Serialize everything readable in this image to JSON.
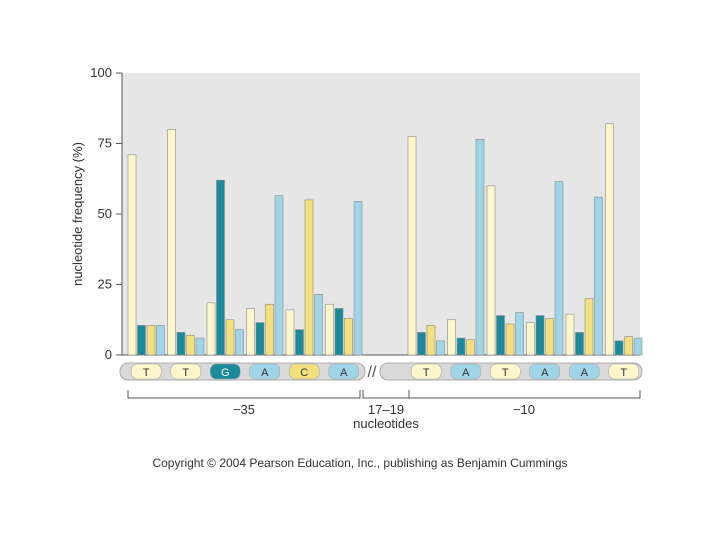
{
  "chart_data": {
    "type": "bar",
    "title": "",
    "ylabel": "nucleotide frequency (%)",
    "ylim": [
      0,
      100
    ],
    "yticks": [
      "100",
      "75",
      "50",
      "25",
      "0"
    ],
    "series_colors": [
      "#fff6cc",
      "#1a8a9c",
      "#f3e07c",
      "#9fd5e6"
    ],
    "groups": [
      {
        "base": "T",
        "region": "-35",
        "values": [
          71,
          10.5,
          10.5,
          10.5
        ]
      },
      {
        "base": "T",
        "region": "-35",
        "values": [
          80,
          8,
          7,
          6
        ]
      },
      {
        "base": "G",
        "region": "-35",
        "values": [
          18.5,
          62,
          12.5,
          9
        ]
      },
      {
        "base": "A",
        "region": "-35",
        "values": [
          16.5,
          11.5,
          18,
          56.5
        ]
      },
      {
        "base": "C",
        "region": "-35",
        "values": [
          16,
          9,
          55,
          21.5
        ]
      },
      {
        "base": "A",
        "region": "-35",
        "values": [
          18,
          16.5,
          13,
          54.5
        ]
      },
      {
        "base": "T",
        "region": "-10",
        "values": [
          77.5,
          8,
          10.5,
          5
        ]
      },
      {
        "base": "A",
        "region": "-10",
        "values": [
          12.5,
          6,
          5.5,
          76.5
        ]
      },
      {
        "base": "T",
        "region": "-10",
        "values": [
          60,
          14,
          11,
          15
        ]
      },
      {
        "base": "A",
        "region": "-10",
        "values": [
          11.5,
          14,
          13,
          61.5
        ]
      },
      {
        "base": "A",
        "region": "-10",
        "values": [
          14.5,
          8,
          20,
          56
        ]
      },
      {
        "base": "T",
        "region": "-10",
        "values": [
          82,
          5,
          6.5,
          6
        ]
      }
    ],
    "base_colors": {
      "T": "#fff6cc",
      "G": "#1a8a9c",
      "C": "#f3e07c",
      "A": "#9fd5e6"
    },
    "region_labels": {
      "left": "−35",
      "middle": "17–19",
      "middle_sub": "nucleotides",
      "right": "−10"
    },
    "break_symbol": "//"
  },
  "copyright": "Copyright © 2004 Pearson Education, Inc., publishing as Benjamin Cummings"
}
